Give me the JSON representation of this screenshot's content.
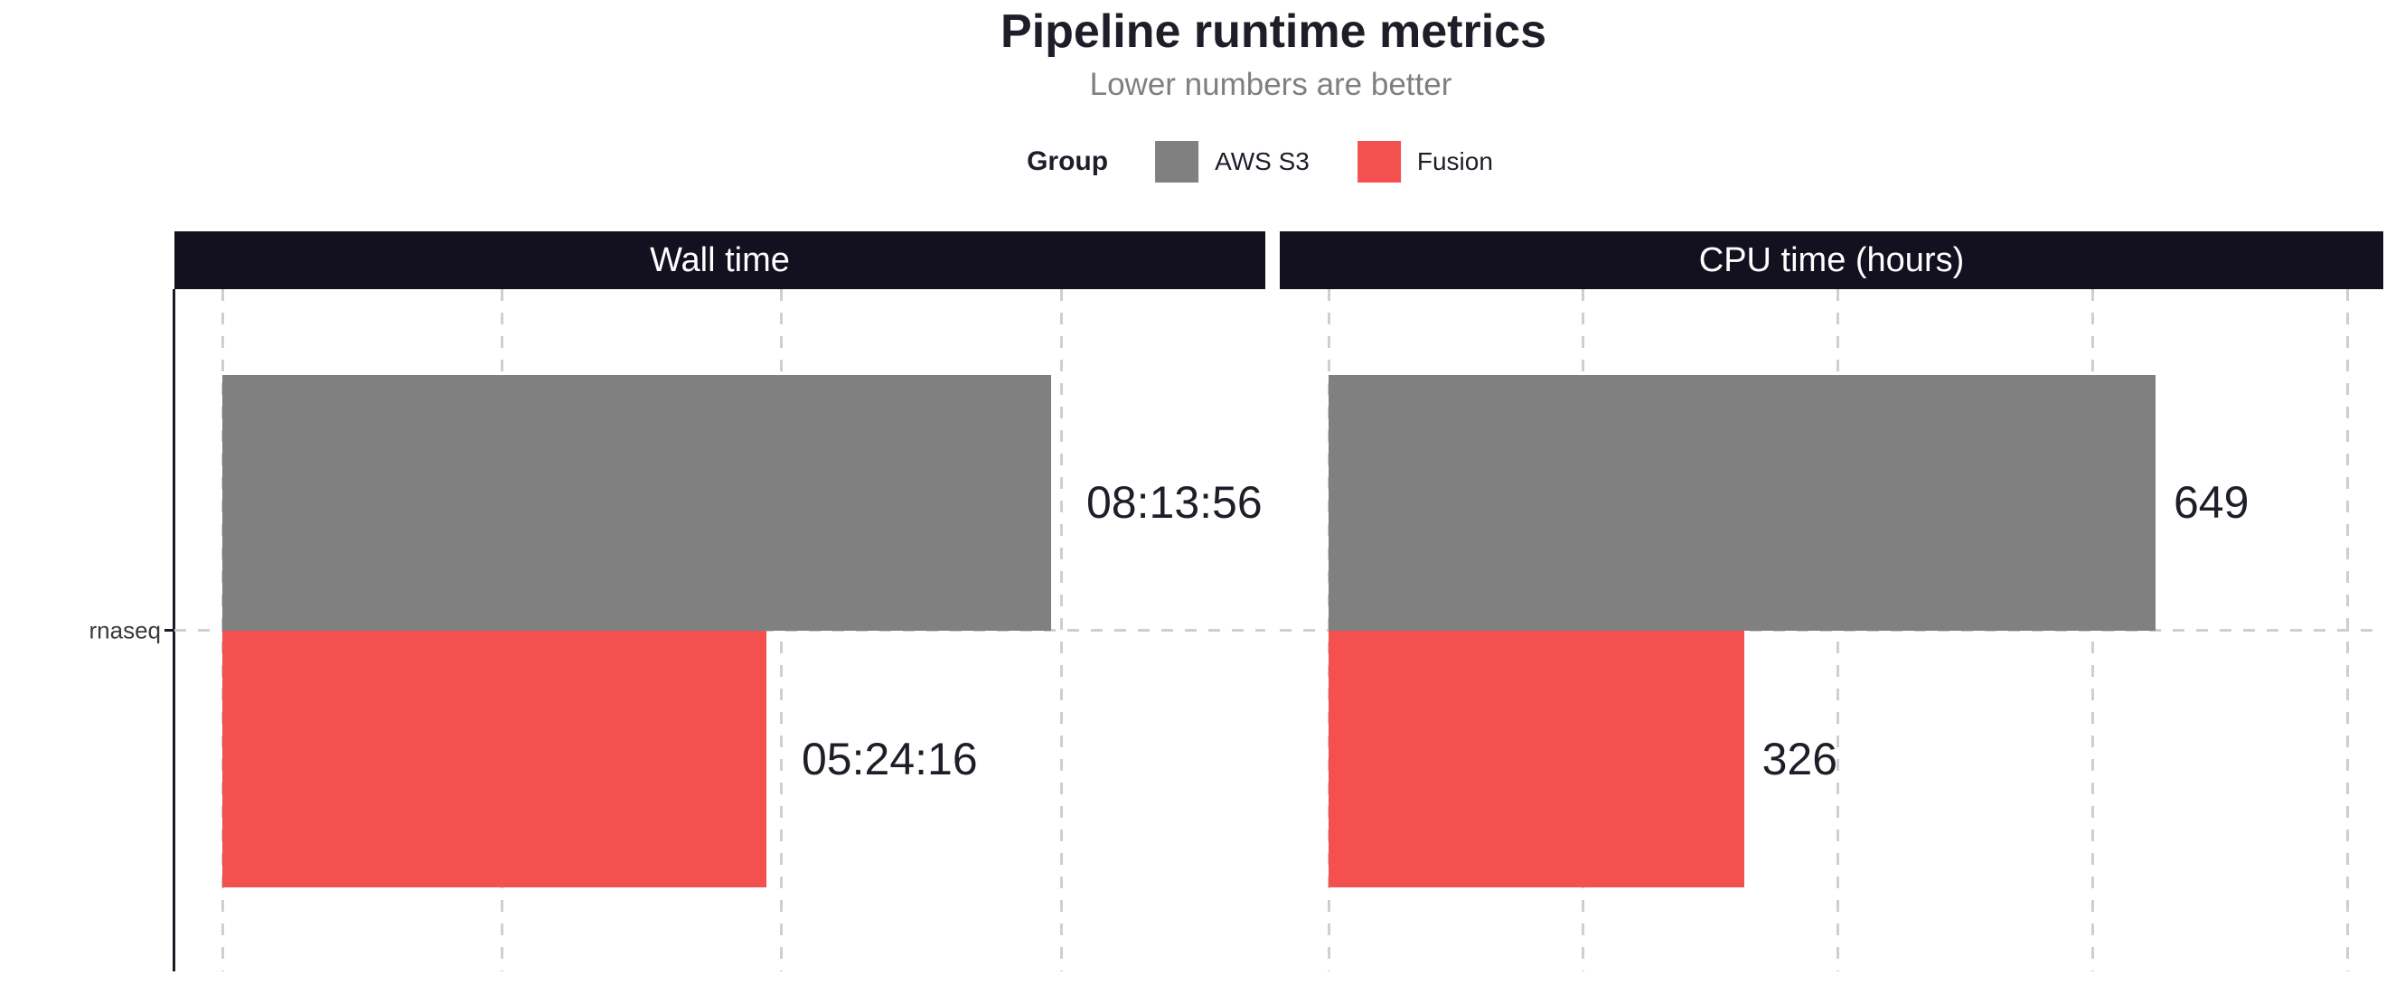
{
  "title": "Pipeline runtime metrics",
  "subtitle": "Lower numbers are better",
  "legend": {
    "title": "Group",
    "items": [
      {
        "label": "AWS S3",
        "color": "#808080"
      },
      {
        "label": "Fusion",
        "color": "#F4504F"
      }
    ]
  },
  "y_axis": {
    "tick_label": "rnaseq"
  },
  "colors": {
    "aws_s3_bar": "#808080",
    "fusion_bar": "#F4504F",
    "strip_background": "#131020",
    "strip_text": "#FFFFFF",
    "gridline": "#CFCFCF",
    "axis_line": "#1B1B26",
    "title_text": "#1D1E28",
    "subtitle_text": "#7F7F7F",
    "value_label_text": "#1E1E28"
  },
  "chart_data": [
    {
      "type": "bar",
      "orientation": "horizontal",
      "panel_label": "Wall time",
      "categories": [
        "rnaseq"
      ],
      "unit": "seconds (shown as HH:MM:SS)",
      "axis_min": 0,
      "axis_gridline_values": [
        0,
        10000,
        20000,
        30000
      ],
      "grid": "dashed",
      "series": [
        {
          "name": "AWS S3",
          "value": 29636,
          "display_label": "08:13:56"
        },
        {
          "name": "Fusion",
          "value": 19456,
          "display_label": "05:24:16"
        }
      ]
    },
    {
      "type": "bar",
      "orientation": "horizontal",
      "panel_label": "CPU time (hours)",
      "categories": [
        "rnaseq"
      ],
      "unit": "hours",
      "axis_min": 0,
      "axis_gridline_values": [
        0,
        200,
        400,
        600,
        800
      ],
      "grid": "dashed",
      "series": [
        {
          "name": "AWS S3",
          "value": 649,
          "display_label": "649"
        },
        {
          "name": "Fusion",
          "value": 326,
          "display_label": "326"
        }
      ]
    }
  ]
}
